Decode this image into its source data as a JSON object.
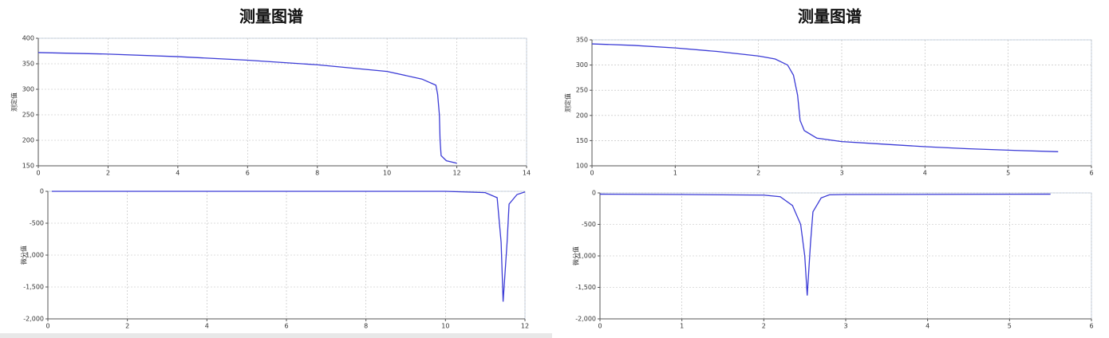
{
  "chart_data": [
    {
      "type": "line",
      "title": "测量图谱",
      "y_label": "测定值",
      "grid": true,
      "x": [
        0,
        2,
        4,
        6,
        8,
        10,
        11,
        11.4,
        11.45,
        11.5,
        11.52,
        11.55,
        11.7,
        12
      ],
      "series": [
        {
          "color": "#3b3bd6",
          "values": [
            372,
            369,
            364,
            357,
            348,
            335,
            320,
            308,
            290,
            250,
            200,
            170,
            160,
            155
          ]
        }
      ],
      "xlim": [
        0,
        14
      ],
      "xticks": [
        0,
        2,
        4,
        6,
        8,
        10,
        12,
        14
      ],
      "ylim": [
        150,
        400
      ],
      "yticks": [
        150,
        200,
        250,
        300,
        350,
        400
      ]
    },
    {
      "type": "line",
      "y_label": "微分值",
      "grid": true,
      "x": [
        0.1,
        2,
        4,
        6,
        8,
        10,
        11,
        11.3,
        11.4,
        11.45,
        11.55,
        11.6,
        11.8,
        12
      ],
      "series": [
        {
          "color": "#3b3bd6",
          "values": [
            0,
            0,
            0,
            0,
            0,
            0,
            -20,
            -100,
            -800,
            -1730,
            -800,
            -200,
            -50,
            -10
          ]
        }
      ],
      "xlim": [
        0,
        12
      ],
      "xticks": [
        0,
        2,
        4,
        6,
        8,
        10,
        12
      ],
      "ylim": [
        -2000,
        0
      ],
      "yticks": [
        {
          "value": -2000,
          "label": "-2,000"
        },
        {
          "value": -1500,
          "label": "-1,500"
        },
        {
          "value": -1000,
          "label": "-1,000"
        },
        -500,
        0
      ]
    },
    {
      "type": "line",
      "title": "测量图谱",
      "y_label": "测定值",
      "grid": true,
      "x": [
        0,
        0.5,
        1,
        1.5,
        2,
        2.2,
        2.35,
        2.42,
        2.47,
        2.5,
        2.55,
        2.7,
        3,
        3.5,
        4,
        4.5,
        5,
        5.6
      ],
      "series": [
        {
          "color": "#3b3bd6",
          "values": [
            342,
            339,
            334,
            327,
            318,
            312,
            300,
            280,
            240,
            190,
            170,
            155,
            148,
            143,
            138,
            134,
            131,
            128
          ]
        }
      ],
      "xlim": [
        0,
        6
      ],
      "xticks": [
        0,
        1,
        2,
        3,
        4,
        5,
        6
      ],
      "ylim": [
        100,
        350
      ],
      "yticks": [
        100,
        150,
        200,
        250,
        300,
        350
      ]
    },
    {
      "type": "line",
      "y_label": "微分值",
      "grid": true,
      "x": [
        0,
        1,
        2,
        2.2,
        2.35,
        2.45,
        2.5,
        2.53,
        2.57,
        2.6,
        2.7,
        2.8,
        3,
        5.5
      ],
      "series": [
        {
          "color": "#3b3bd6",
          "values": [
            -20,
            -25,
            -35,
            -60,
            -200,
            -500,
            -1000,
            -1630,
            -800,
            -300,
            -80,
            -30,
            -25,
            -20
          ]
        }
      ],
      "xlim": [
        0,
        6
      ],
      "xticks": [
        0,
        1,
        2,
        3,
        4,
        5,
        6
      ],
      "ylim": [
        -2000,
        0
      ],
      "yticks": [
        {
          "value": -2000,
          "label": "-2,000"
        },
        {
          "value": -1500,
          "label": "-1,500"
        },
        {
          "value": -1000,
          "label": "-1,000"
        },
        -500,
        0
      ]
    }
  ]
}
